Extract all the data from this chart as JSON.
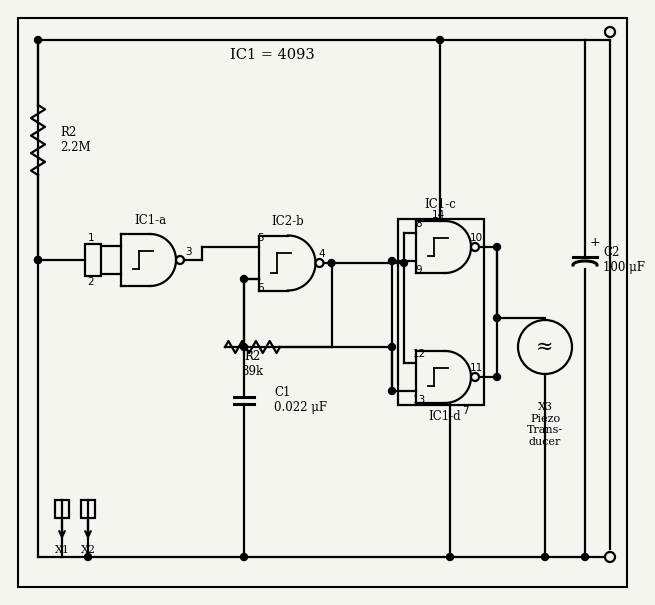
{
  "title": "IC1 = 4093",
  "bg": "#f5f5f0",
  "lc": "#000000",
  "gate_labels": [
    "IC1-a",
    "IC2-b",
    "IC1-c",
    "IC1-d"
  ],
  "R1_label": "R2\n2.2M",
  "R2_label": "R2\n39k",
  "C1_label": "C1\n0.022 μF",
  "C2_label": "C2\n100 μF",
  "X3_label": "X3\nPiezo\nTrans-\nducer",
  "X1_label": "X1",
  "X2_label": "X2",
  "pin_labels": [
    "1",
    "2",
    "3",
    "4",
    "5",
    "6",
    "7",
    "8",
    "9",
    "10",
    "11",
    "12",
    "13",
    "14"
  ]
}
